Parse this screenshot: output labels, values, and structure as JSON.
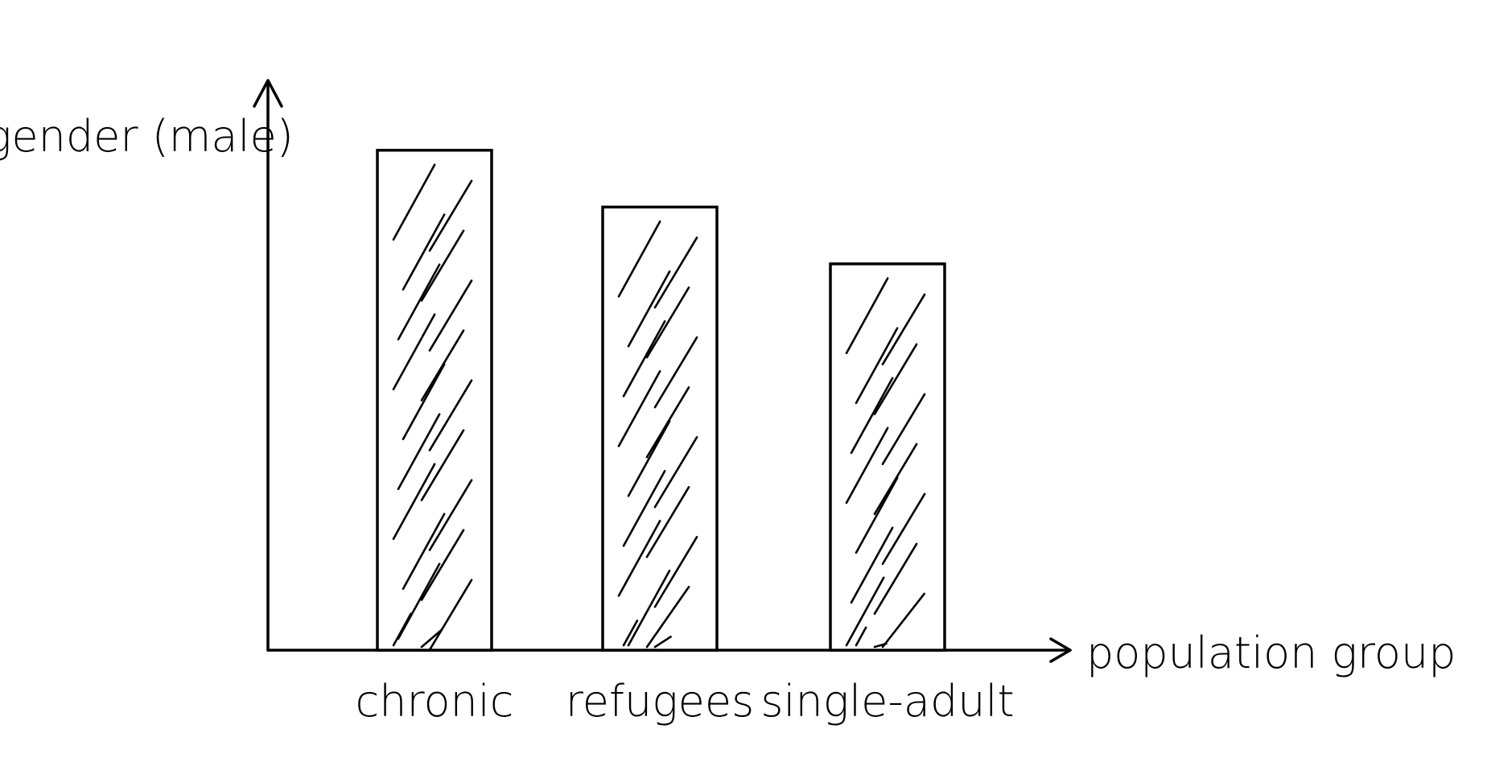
{
  "chart_data": {
    "type": "bar",
    "categories": [
      "chronic",
      "refugees",
      "single-adult"
    ],
    "values": [
      0.88,
      0.78,
      0.68
    ],
    "xlabel": "population group",
    "ylabel": "gender (male)",
    "ylim": [
      0,
      1
    ],
    "grid": false,
    "legend": "none",
    "style": "hand-drawn, hatched bars"
  }
}
